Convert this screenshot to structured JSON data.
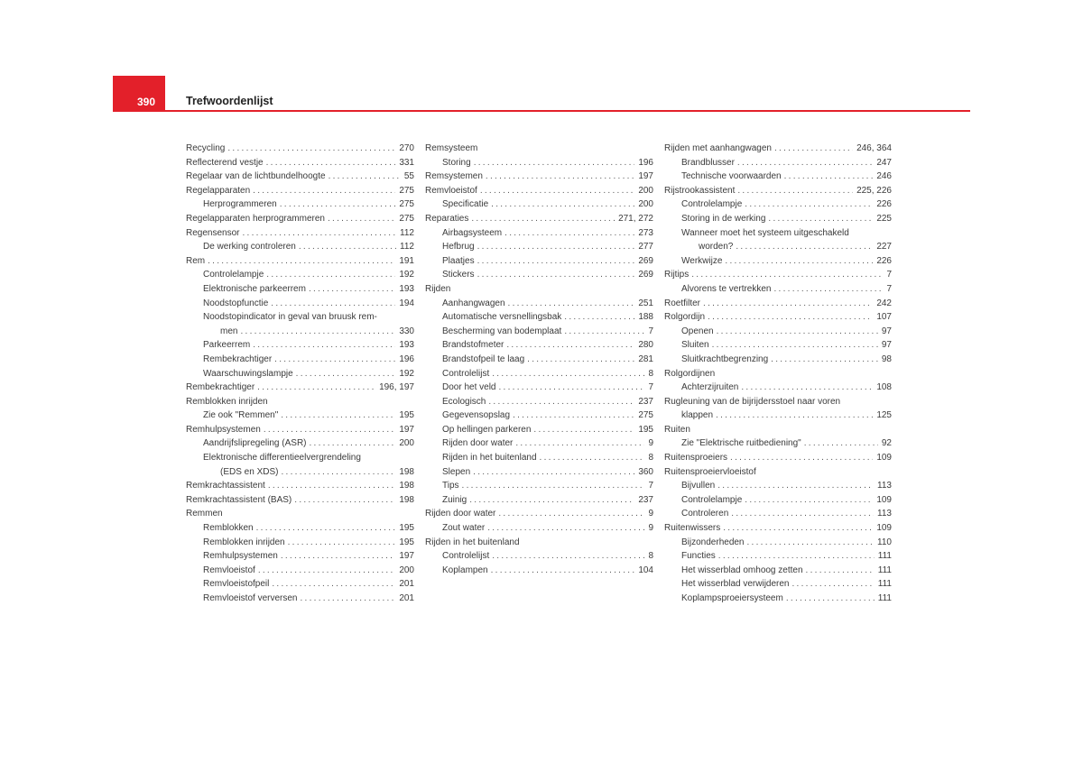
{
  "header": {
    "page_number": "390",
    "title": "Trefwoordenlijst",
    "accent_color": "#e3202a"
  },
  "columns": [
    [
      {
        "t": "Recycling",
        "p": "270",
        "l": 0
      },
      {
        "t": "Reflecterend vestje",
        "p": "331",
        "l": 0
      },
      {
        "t": "Regelaar van de lichtbundelhoogte",
        "p": "55",
        "l": 0
      },
      {
        "t": "Regelapparaten",
        "p": "275",
        "l": 0
      },
      {
        "t": "Herprogrammeren",
        "p": "275",
        "l": 1
      },
      {
        "t": "Regelapparaten herprogrammeren",
        "p": "275",
        "l": 0
      },
      {
        "t": "Regensensor",
        "p": "112",
        "l": 0
      },
      {
        "t": "De werking controleren",
        "p": "112",
        "l": 1
      },
      {
        "t": "Rem",
        "p": "191",
        "l": 0
      },
      {
        "t": "Controlelampje",
        "p": "192",
        "l": 1
      },
      {
        "t": "Elektronische parkeerrem",
        "p": "193",
        "l": 1
      },
      {
        "t": "Noodstopfunctie",
        "p": "194",
        "l": 1
      },
      {
        "t": "Noodstopindicator in geval van bruusk rem-",
        "c": "men",
        "p": "330",
        "l": 1
      },
      {
        "t": "Parkeerrem",
        "p": "193",
        "l": 1
      },
      {
        "t": "Rembekrachtiger",
        "p": "196",
        "l": 1
      },
      {
        "t": "Waarschuwingslampje",
        "p": "192",
        "l": 1
      },
      {
        "t": "Rembekrachtiger",
        "p": "196, 197",
        "l": 0
      },
      {
        "t": "Remblokken inrijden",
        "p": "",
        "l": 0
      },
      {
        "t": "Zie ook \"Remmen\"",
        "p": "195",
        "l": 1
      },
      {
        "t": "Remhulpsystemen",
        "p": "197",
        "l": 0
      },
      {
        "t": "Aandrijfslipregeling (ASR)",
        "p": "200",
        "l": 1
      },
      {
        "t": "Elektronische differentieelvergrendeling",
        "c": "(EDS en XDS)",
        "p": "198",
        "l": 1
      },
      {
        "t": "Remkrachtassistent",
        "p": "198",
        "l": 0
      },
      {
        "t": "Remkrachtassistent (BAS)",
        "p": "198",
        "l": 0
      },
      {
        "t": "Remmen",
        "p": "",
        "l": 0
      },
      {
        "t": "Remblokken",
        "p": "195",
        "l": 1
      },
      {
        "t": "Remblokken inrijden",
        "p": "195",
        "l": 1
      },
      {
        "t": "Remhulpsystemen",
        "p": "197",
        "l": 1
      },
      {
        "t": "Remvloeistof",
        "p": "200",
        "l": 1
      },
      {
        "t": "Remvloeistofpeil",
        "p": "201",
        "l": 1
      },
      {
        "t": "Remvloeistof verversen",
        "p": "201",
        "l": 1
      }
    ],
    [
      {
        "t": "Remsysteem",
        "p": "",
        "l": 0
      },
      {
        "t": "Storing",
        "p": "196",
        "l": 1
      },
      {
        "t": "Remsystemen",
        "p": "197",
        "l": 0
      },
      {
        "t": "Remvloeistof",
        "p": "200",
        "l": 0
      },
      {
        "t": "Specificatie",
        "p": "200",
        "l": 1
      },
      {
        "t": "Reparaties",
        "p": "271, 272",
        "l": 0
      },
      {
        "t": "Airbagsysteem",
        "p": "273",
        "l": 1
      },
      {
        "t": "Hefbrug",
        "p": "277",
        "l": 1
      },
      {
        "t": "Plaatjes",
        "p": "269",
        "l": 1
      },
      {
        "t": "Stickers",
        "p": "269",
        "l": 1
      },
      {
        "t": "Rijden",
        "p": "",
        "l": 0
      },
      {
        "t": "Aanhangwagen",
        "p": "251",
        "l": 1
      },
      {
        "t": "Automatische versnellingsbak",
        "p": "188",
        "l": 1
      },
      {
        "t": "Bescherming van bodemplaat",
        "p": "7",
        "l": 1
      },
      {
        "t": "Brandstofmeter",
        "p": "280",
        "l": 1
      },
      {
        "t": "Brandstofpeil te laag",
        "p": "281",
        "l": 1
      },
      {
        "t": "Controlelijst",
        "p": "8",
        "l": 1
      },
      {
        "t": "Door het veld",
        "p": "7",
        "l": 1
      },
      {
        "t": "Ecologisch",
        "p": "237",
        "l": 1
      },
      {
        "t": "Gegevensopslag",
        "p": "275",
        "l": 1
      },
      {
        "t": "Op hellingen parkeren",
        "p": "195",
        "l": 1
      },
      {
        "t": "Rijden door water",
        "p": "9",
        "l": 1
      },
      {
        "t": "Rijden in het buitenland",
        "p": "8",
        "l": 1
      },
      {
        "t": "Slepen",
        "p": "360",
        "l": 1
      },
      {
        "t": "Tips",
        "p": "7",
        "l": 1
      },
      {
        "t": "Zuinig",
        "p": "237",
        "l": 1
      },
      {
        "t": "Rijden door water",
        "p": "9",
        "l": 0
      },
      {
        "t": "Zout water",
        "p": "9",
        "l": 1
      },
      {
        "t": "Rijden in het buitenland",
        "p": "",
        "l": 0
      },
      {
        "t": "Controlelijst",
        "p": "8",
        "l": 1
      },
      {
        "t": "Koplampen",
        "p": "104",
        "l": 1
      }
    ],
    [
      {
        "t": "Rijden met aanhangwagen",
        "p": "246, 364",
        "l": 0
      },
      {
        "t": "Brandblusser",
        "p": "247",
        "l": 1
      },
      {
        "t": "Technische voorwaarden",
        "p": "246",
        "l": 1
      },
      {
        "t": "Rijstrookassistent",
        "p": "225, 226",
        "l": 0
      },
      {
        "t": "Controlelampje",
        "p": "226",
        "l": 1
      },
      {
        "t": "Storing in de werking",
        "p": "225",
        "l": 1
      },
      {
        "t": "Wanneer moet het systeem uitgeschakeld",
        "c": "worden?",
        "p": "227",
        "l": 1
      },
      {
        "t": "Werkwijze",
        "p": "226",
        "l": 1
      },
      {
        "t": "Rijtips",
        "p": "7",
        "l": 0
      },
      {
        "t": "Alvorens te vertrekken",
        "p": "7",
        "l": 1
      },
      {
        "t": "Roetfilter",
        "p": "242",
        "l": 0
      },
      {
        "t": "Rolgordijn",
        "p": "107",
        "l": 0
      },
      {
        "t": "Openen",
        "p": "97",
        "l": 1
      },
      {
        "t": "Sluiten",
        "p": "97",
        "l": 1
      },
      {
        "t": "Sluitkrachtbegrenzing",
        "p": "98",
        "l": 1
      },
      {
        "t": "Rolgordijnen",
        "p": "",
        "l": 0
      },
      {
        "t": "Achterzijruiten",
        "p": "108",
        "l": 1
      },
      {
        "t": "Rugleuning van de bijrijdersstoel naar voren",
        "c": "klappen",
        "p": "125",
        "l": 0
      },
      {
        "t": "Ruiten",
        "p": "",
        "l": 0
      },
      {
        "t": "Zie \"Elektrische ruitbediening\"",
        "p": "92",
        "l": 1
      },
      {
        "t": "Ruitensproeiers",
        "p": "109",
        "l": 0
      },
      {
        "t": "Ruitensproeiervloeistof",
        "p": "",
        "l": 0
      },
      {
        "t": "Bijvullen",
        "p": "113",
        "l": 1
      },
      {
        "t": "Controlelampje",
        "p": "109",
        "l": 1
      },
      {
        "t": "Controleren",
        "p": "113",
        "l": 1
      },
      {
        "t": "Ruitenwissers",
        "p": "109",
        "l": 0
      },
      {
        "t": "Bijzonderheden",
        "p": "110",
        "l": 1
      },
      {
        "t": "Functies",
        "p": "111",
        "l": 1
      },
      {
        "t": "Het wisserblad omhoog zetten",
        "p": "111",
        "l": 1
      },
      {
        "t": "Het wisserblad verwijderen",
        "p": "111",
        "l": 1
      },
      {
        "t": "Koplampsproeiersysteem",
        "p": "111",
        "l": 1
      }
    ]
  ]
}
